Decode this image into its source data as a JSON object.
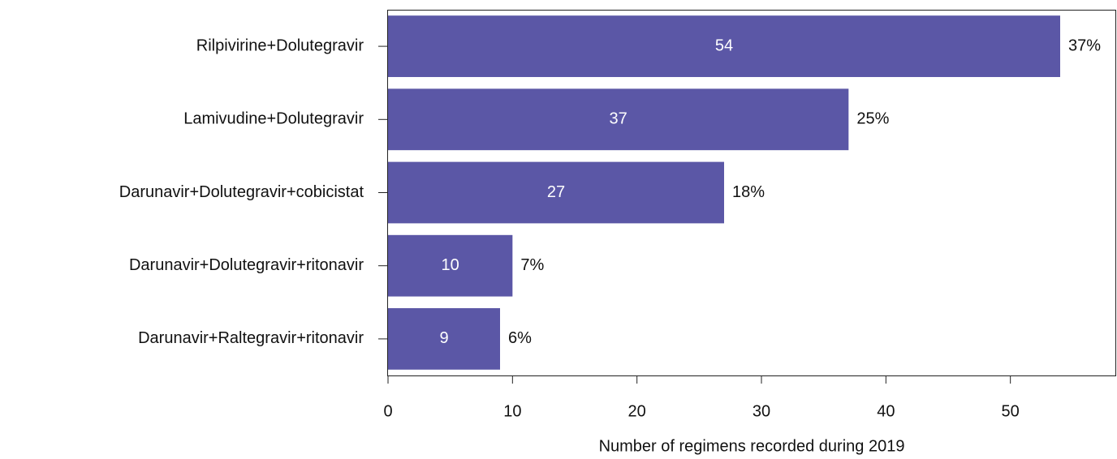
{
  "chart_data": {
    "type": "barh",
    "categories": [
      "Rilpivirine+Dolutegravir",
      "Lamivudine+Dolutegravir",
      "Darunavir+Dolutegravir+cobicistat",
      "Darunavir+Dolutegravir+ritonavir",
      "Darunavir+Raltegravir+ritonavir"
    ],
    "values": [
      54,
      37,
      27,
      10,
      9
    ],
    "shares": [
      37,
      25,
      18,
      7,
      6
    ],
    "share_labels": [
      "37%",
      "25%",
      "18%",
      "7%",
      "6%"
    ],
    "color": "#5b57a6",
    "x_label": "Number of regimens recorded during 2019",
    "xlim": [
      0,
      58.5
    ],
    "xticks": [
      0,
      10,
      20,
      30,
      40,
      50
    ]
  }
}
